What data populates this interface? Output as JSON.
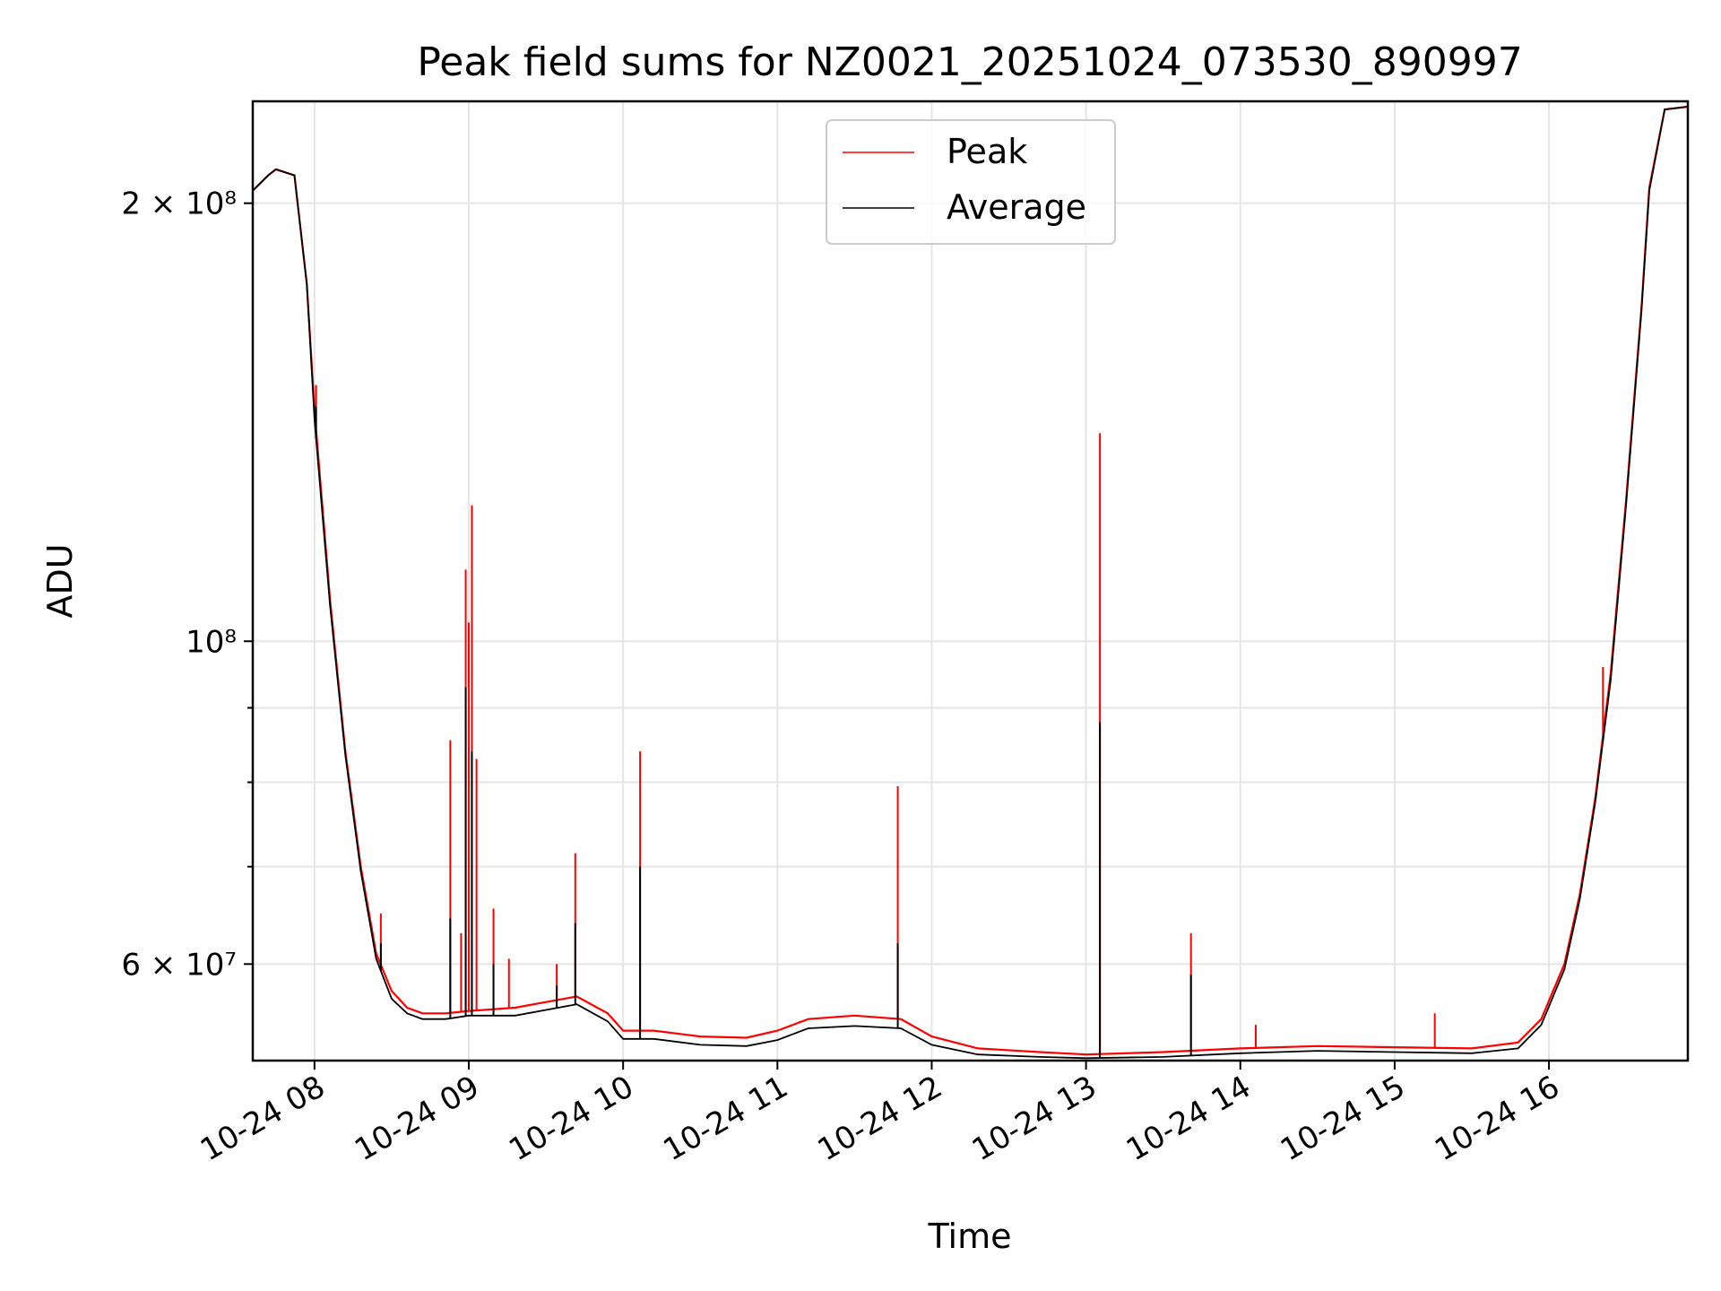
{
  "chart_data": {
    "type": "line",
    "title": "Peak field sums for NZ0021_20251024_073530_890997",
    "xlabel": "Time",
    "ylabel": "ADU",
    "yscale": "log",
    "xlim_hours": [
      7.6,
      16.9
    ],
    "ylim": [
      51500000,
      235000000
    ],
    "grid": true,
    "legend_position": "upper center",
    "x_ticks": [
      {
        "value": 8,
        "label": "10-24 08"
      },
      {
        "value": 9,
        "label": "10-24 09"
      },
      {
        "value": 10,
        "label": "10-24 10"
      },
      {
        "value": 11,
        "label": "10-24 11"
      },
      {
        "value": 12,
        "label": "10-24 12"
      },
      {
        "value": 13,
        "label": "10-24 13"
      },
      {
        "value": 14,
        "label": "10-24 14"
      },
      {
        "value": 15,
        "label": "10-24 15"
      },
      {
        "value": 16,
        "label": "10-24 16"
      }
    ],
    "y_major_ticks": [
      {
        "value": 60000000,
        "label": "6 × 10⁷"
      },
      {
        "value": 100000000,
        "label": "10⁸"
      },
      {
        "value": 200000000,
        "label": "2 × 10⁸"
      }
    ],
    "y_minor_ticks": [
      70000000,
      80000000,
      90000000
    ],
    "series": [
      {
        "name": "Peak",
        "color": "#ff0000",
        "baseline": {
          "x": [
            7.6,
            7.7,
            7.75,
            7.87,
            7.95,
            8.0,
            8.1,
            8.2,
            8.3,
            8.4,
            8.5,
            8.6,
            8.7,
            8.85,
            9.0,
            9.3,
            9.5,
            9.7,
            9.9,
            10.0,
            10.2,
            10.5,
            10.8,
            11.0,
            11.2,
            11.5,
            11.8,
            12.0,
            12.3,
            12.7,
            13.0,
            13.5,
            14.0,
            14.5,
            15.0,
            15.5,
            15.8,
            15.95,
            16.1,
            16.2,
            16.3,
            16.4,
            16.5,
            16.6,
            16.65,
            16.75,
            16.9
          ],
          "y": [
            204000000,
            209000000,
            211000000,
            209000000,
            176000000,
            144000000,
            107000000,
            84000000,
            70000000,
            61000000,
            57500000,
            56000000,
            55500000,
            55500000,
            55700000,
            56000000,
            56500000,
            57000000,
            55500000,
            54000000,
            54000000,
            53500000,
            53400000,
            54000000,
            55000000,
            55300000,
            55000000,
            53500000,
            52500000,
            52200000,
            52000000,
            52200000,
            52500000,
            52700000,
            52600000,
            52500000,
            53000000,
            55000000,
            60000000,
            67000000,
            78000000,
            95000000,
            125000000,
            170000000,
            205000000,
            232000000,
            233000000
          ]
        },
        "spikes": [
          {
            "x": 8.01,
            "y": 150000000
          },
          {
            "x": 8.43,
            "y": 65000000
          },
          {
            "x": 8.88,
            "y": 85500000
          },
          {
            "x": 8.95,
            "y": 63000000
          },
          {
            "x": 8.98,
            "y": 112000000
          },
          {
            "x": 9.0,
            "y": 103000000
          },
          {
            "x": 9.02,
            "y": 124000000
          },
          {
            "x": 9.05,
            "y": 83000000
          },
          {
            "x": 9.16,
            "y": 65500000
          },
          {
            "x": 9.26,
            "y": 60500000
          },
          {
            "x": 9.57,
            "y": 60000000
          },
          {
            "x": 9.69,
            "y": 71500000
          },
          {
            "x": 10.11,
            "y": 84000000
          },
          {
            "x": 11.78,
            "y": 79500000
          },
          {
            "x": 13.09,
            "y": 139000000
          },
          {
            "x": 13.68,
            "y": 63000000
          },
          {
            "x": 14.1,
            "y": 54500000
          },
          {
            "x": 15.26,
            "y": 55500000
          },
          {
            "x": 16.35,
            "y": 96000000
          }
        ]
      },
      {
        "name": "Average",
        "color": "#000000",
        "baseline": {
          "x": [
            7.6,
            7.7,
            7.75,
            7.87,
            7.95,
            8.0,
            8.1,
            8.2,
            8.3,
            8.4,
            8.5,
            8.6,
            8.7,
            8.85,
            9.0,
            9.3,
            9.5,
            9.7,
            9.9,
            10.0,
            10.2,
            10.5,
            10.8,
            11.0,
            11.2,
            11.5,
            11.8,
            12.0,
            12.3,
            12.7,
            13.0,
            13.5,
            14.0,
            14.5,
            15.0,
            15.5,
            15.8,
            15.95,
            16.1,
            16.2,
            16.3,
            16.4,
            16.5,
            16.6,
            16.65,
            16.75,
            16.9
          ],
          "y": [
            204000000,
            209000000,
            211000000,
            209000000,
            176000000,
            142000000,
            106000000,
            83500000,
            69500000,
            60500000,
            56800000,
            55500000,
            55000000,
            55000000,
            55300000,
            55300000,
            55800000,
            56300000,
            54800000,
            53300000,
            53300000,
            52800000,
            52700000,
            53200000,
            54200000,
            54400000,
            54200000,
            52800000,
            52000000,
            51800000,
            51700000,
            51800000,
            52100000,
            52300000,
            52200000,
            52100000,
            52500000,
            54500000,
            59500000,
            66500000,
            77500000,
            94000000,
            124000000,
            169000000,
            204000000,
            232000000,
            233000000
          ]
        },
        "spikes": [
          {
            "x": 8.01,
            "y": 145000000
          },
          {
            "x": 8.43,
            "y": 62000000
          },
          {
            "x": 8.88,
            "y": 64500000
          },
          {
            "x": 8.98,
            "y": 93000000
          },
          {
            "x": 9.02,
            "y": 84000000
          },
          {
            "x": 9.16,
            "y": 60000000
          },
          {
            "x": 9.57,
            "y": 58000000
          },
          {
            "x": 9.69,
            "y": 64000000
          },
          {
            "x": 10.11,
            "y": 70000000
          },
          {
            "x": 11.78,
            "y": 62000000
          },
          {
            "x": 13.09,
            "y": 88000000
          },
          {
            "x": 13.68,
            "y": 59000000
          }
        ]
      }
    ]
  }
}
